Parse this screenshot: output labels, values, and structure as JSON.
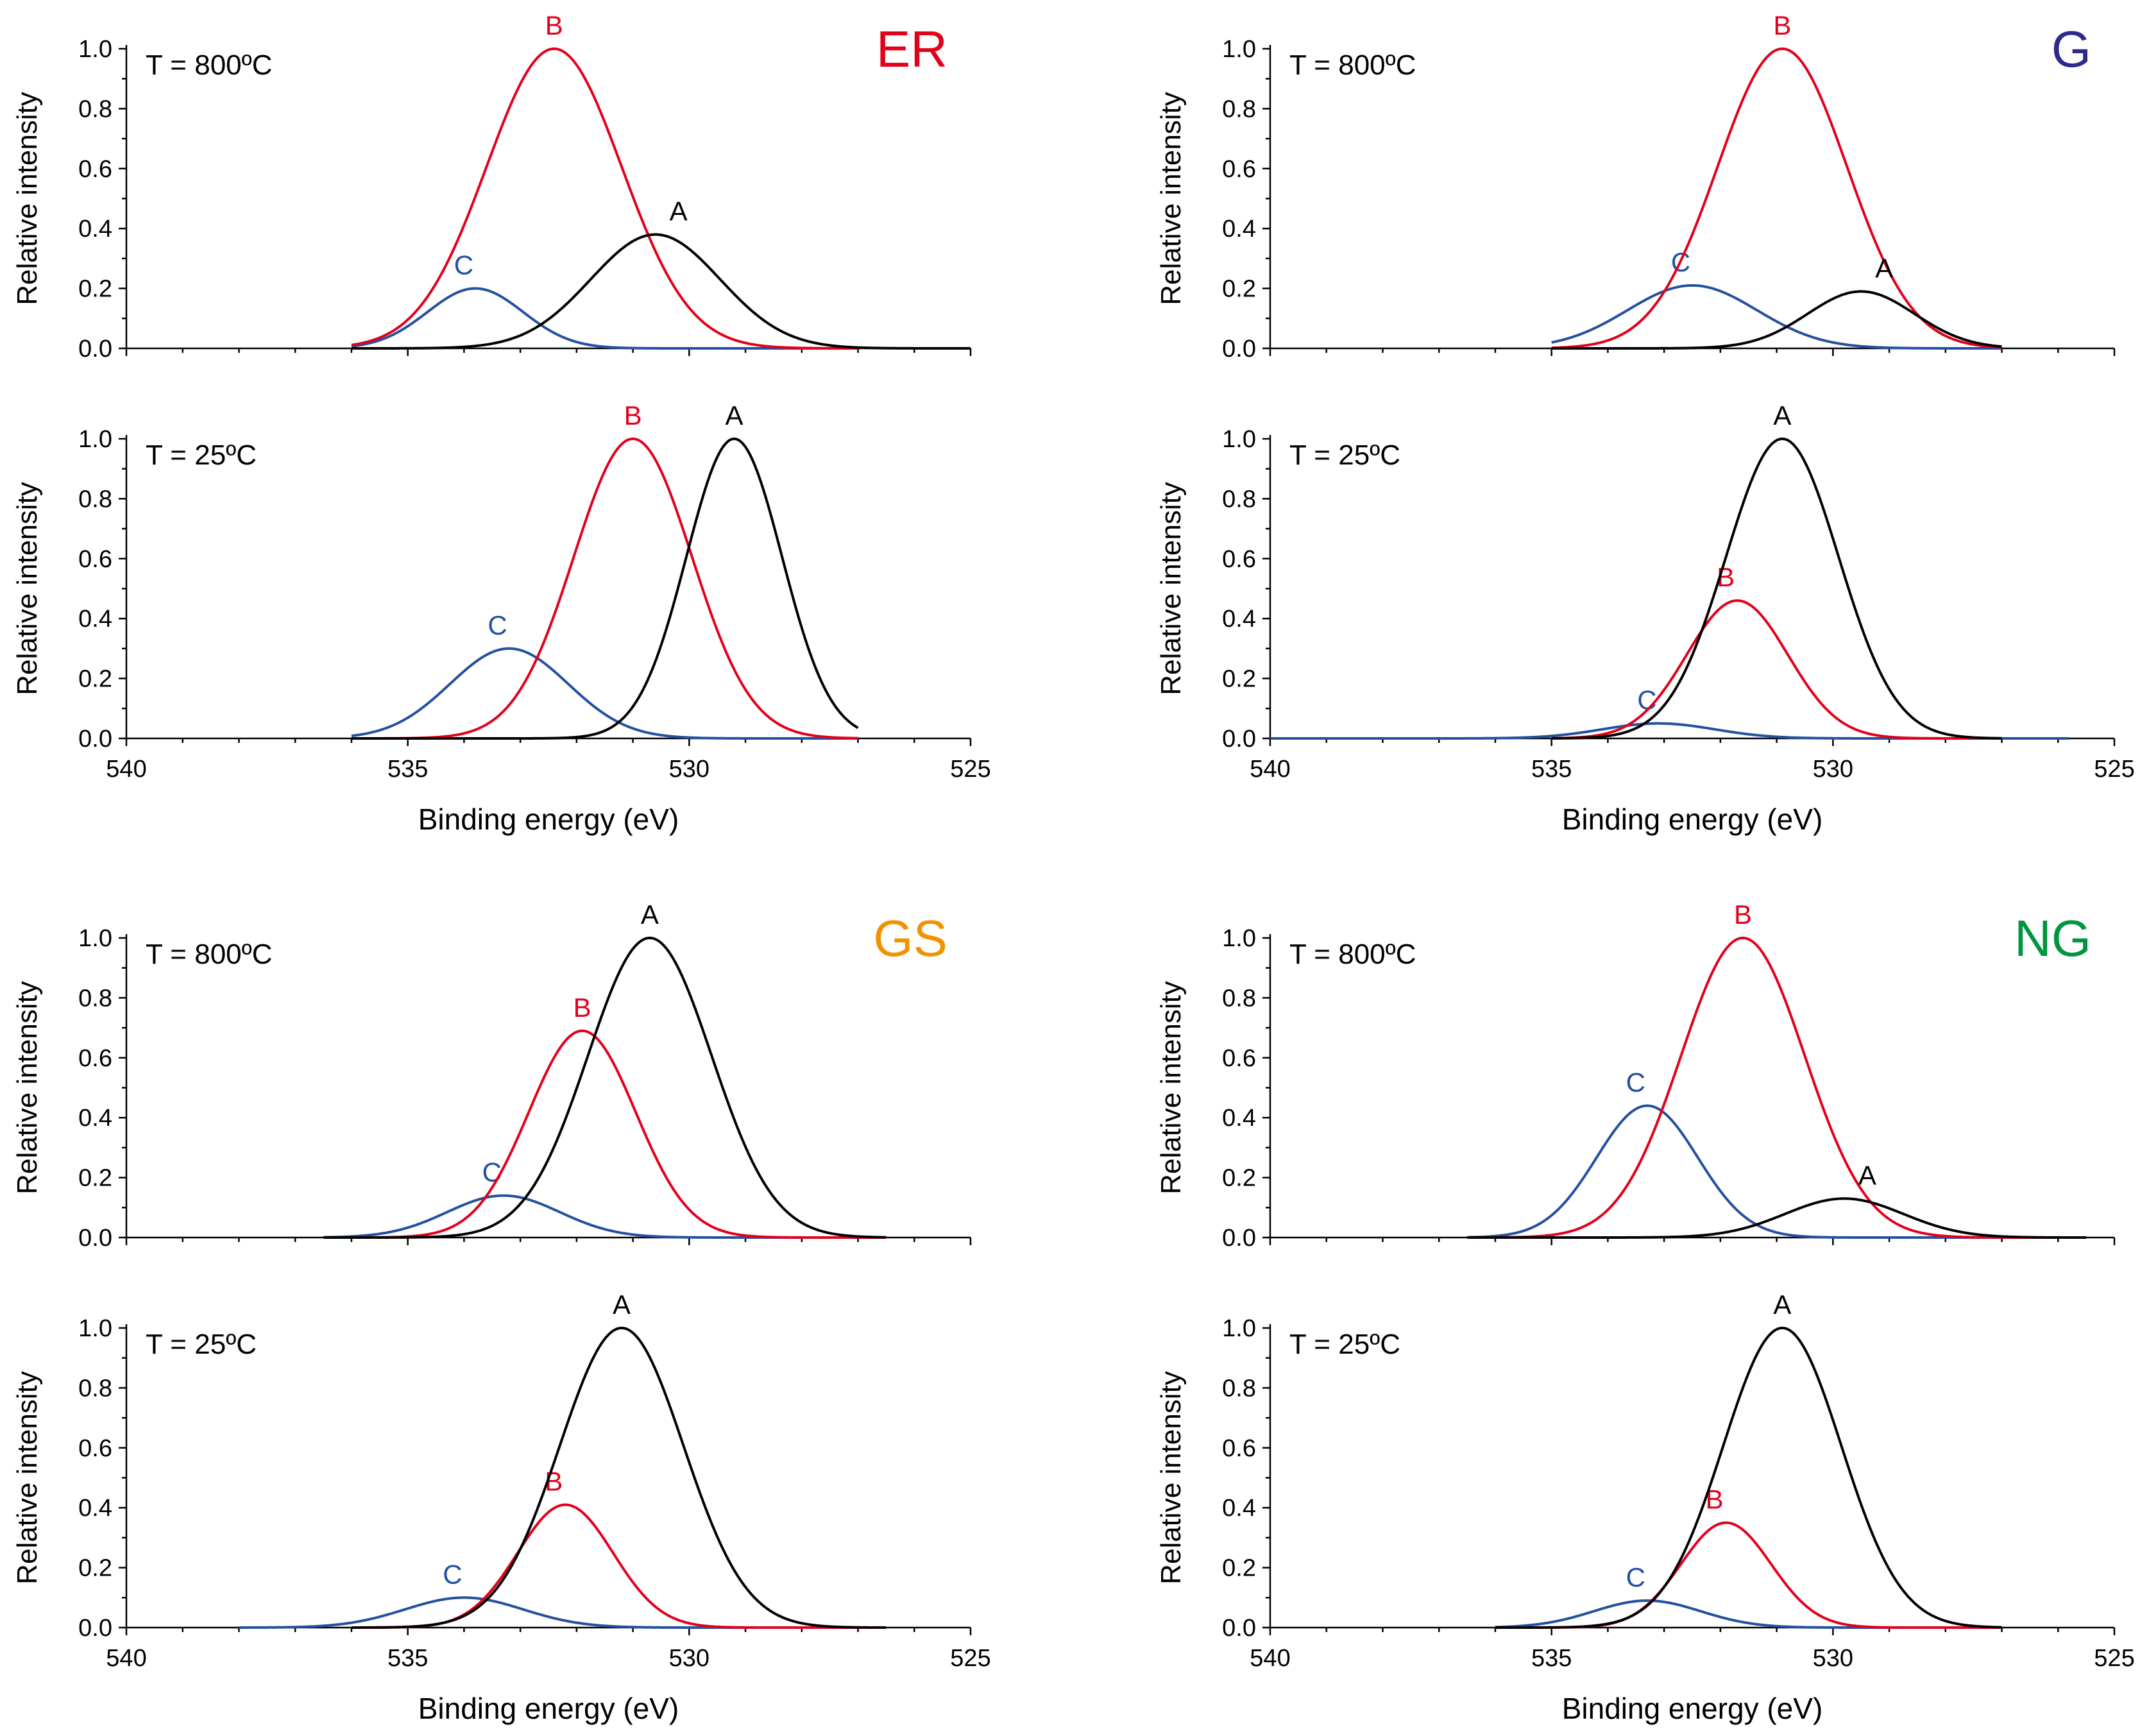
{
  "chart_data": {
    "type": "line",
    "description_axis": {
      "xlabel": "Binding energy (eV)",
      "ylabel": "Relative intensity",
      "xlim": [
        540,
        525
      ],
      "xticks": [
        540,
        535,
        530,
        525
      ],
      "ylim": [
        0,
        1.0
      ],
      "yticks": [
        0.0,
        0.2,
        0.4,
        0.6,
        0.8,
        1.0
      ],
      "ytick_labels": [
        "0.0",
        "0.2",
        "0.4",
        "0.6",
        "0.8",
        "1.0"
      ]
    },
    "colors": {
      "A": "#000000",
      "B": "#e3001b",
      "C": "#2450a0"
    },
    "panels": [
      {
        "group": "ER",
        "group_color": "#e3001b",
        "temperature": "T = 800ºC",
        "series": [
          {
            "name": "C",
            "center": 533.8,
            "height": 0.2,
            "sigma": 0.85,
            "range": [
              536.0,
              527.0
            ]
          },
          {
            "name": "B",
            "center": 532.4,
            "height": 1.0,
            "sigma": 1.2,
            "range": [
              536.0,
              527.0
            ]
          },
          {
            "name": "A",
            "center": 530.6,
            "height": 0.38,
            "sigma": 1.15,
            "range": [
              536.0,
              525.0
            ]
          }
        ]
      },
      {
        "group": "G",
        "group_color": "#2e2a8c",
        "temperature": "T = 800ºC",
        "series": [
          {
            "name": "C",
            "center": 532.5,
            "height": 0.21,
            "sigma": 1.15,
            "range": [
              535.0,
              527.0
            ]
          },
          {
            "name": "B",
            "center": 530.9,
            "height": 1.0,
            "sigma": 1.15,
            "range": [
              535.0,
              527.0
            ]
          },
          {
            "name": "A",
            "center": 529.5,
            "height": 0.19,
            "sigma": 0.95,
            "range": [
              535.0,
              527.0
            ]
          }
        ]
      },
      {
        "group": "ER",
        "group_color": "",
        "temperature": "T = 25ºC",
        "series": [
          {
            "name": "C",
            "center": 533.2,
            "height": 0.3,
            "sigma": 1.05,
            "range": [
              536.0,
              527.0
            ]
          },
          {
            "name": "B",
            "center": 531.0,
            "height": 1.0,
            "sigma": 1.05,
            "range": [
              536.0,
              527.0
            ]
          },
          {
            "name": "A",
            "center": 529.2,
            "height": 1.0,
            "sigma": 0.85,
            "range": [
              536.0,
              527.0
            ]
          }
        ]
      },
      {
        "group": "G",
        "group_color": "",
        "temperature": "T = 25ºC",
        "series": [
          {
            "name": "C",
            "center": 533.1,
            "height": 0.05,
            "sigma": 1.0,
            "range": [
              540.0,
              525.8
            ]
          },
          {
            "name": "B",
            "center": 531.7,
            "height": 0.46,
            "sigma": 0.9,
            "range": [
              535.0,
              527.0
            ]
          },
          {
            "name": "A",
            "center": 530.9,
            "height": 1.0,
            "sigma": 1.0,
            "range": [
              535.0,
              527.0
            ]
          }
        ]
      },
      {
        "group": "GS",
        "group_color": "#f39200",
        "temperature": "T = 800ºC",
        "series": [
          {
            "name": "C",
            "center": 533.3,
            "height": 0.14,
            "sigma": 1.0,
            "range": [
              536.5,
              526.5
            ]
          },
          {
            "name": "B",
            "center": 531.9,
            "height": 0.69,
            "sigma": 0.95,
            "range": [
              536.5,
              526.5
            ]
          },
          {
            "name": "A",
            "center": 530.7,
            "height": 1.0,
            "sigma": 1.1,
            "range": [
              536.5,
              526.5
            ]
          }
        ]
      },
      {
        "group": "NG",
        "group_color": "#00963f",
        "temperature": "T = 800ºC",
        "series": [
          {
            "name": "C",
            "center": 533.3,
            "height": 0.44,
            "sigma": 0.9,
            "range": [
              536.5,
              525.5
            ]
          },
          {
            "name": "B",
            "center": 531.6,
            "height": 1.0,
            "sigma": 1.1,
            "range": [
              536.5,
              525.5
            ]
          },
          {
            "name": "A",
            "center": 529.8,
            "height": 0.13,
            "sigma": 1.05,
            "range": [
              536.5,
              525.5
            ]
          }
        ]
      },
      {
        "group": "GS",
        "group_color": "",
        "temperature": "T = 25ºC",
        "series": [
          {
            "name": "C",
            "center": 534.0,
            "height": 0.1,
            "sigma": 1.05,
            "range": [
              538.0,
              526.5
            ]
          },
          {
            "name": "B",
            "center": 532.2,
            "height": 0.41,
            "sigma": 0.85,
            "range": [
              536.0,
              526.5
            ]
          },
          {
            "name": "A",
            "center": 531.2,
            "height": 1.0,
            "sigma": 1.1,
            "range": [
              536.0,
              526.5
            ]
          }
        ]
      },
      {
        "group": "NG",
        "group_color": "",
        "temperature": "T = 25ºC",
        "series": [
          {
            "name": "C",
            "center": 533.3,
            "height": 0.09,
            "sigma": 0.95,
            "range": [
              536.0,
              527.0
            ]
          },
          {
            "name": "B",
            "center": 531.9,
            "height": 0.35,
            "sigma": 0.8,
            "range": [
              536.0,
              527.0
            ]
          },
          {
            "name": "A",
            "center": 530.9,
            "height": 1.0,
            "sigma": 1.05,
            "range": [
              536.0,
              527.0
            ]
          }
        ]
      }
    ]
  }
}
